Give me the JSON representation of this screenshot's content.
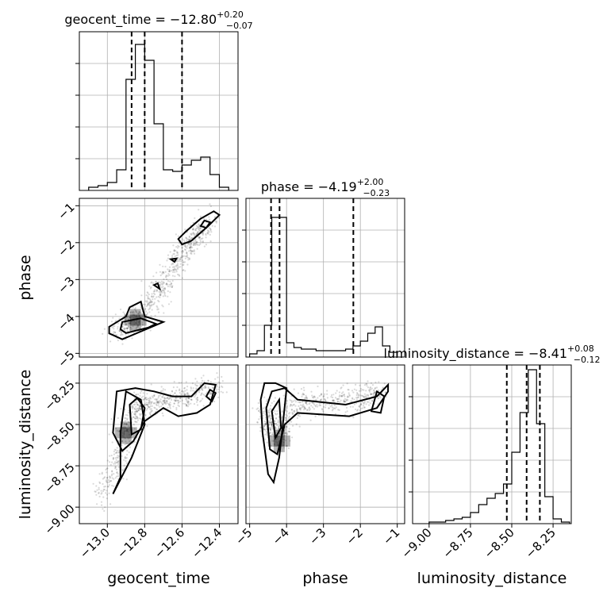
{
  "chart_data": {
    "type": "corner",
    "parameters": [
      "geocent_time",
      "phase",
      "luminosity_distance"
    ],
    "grid": true,
    "axes": {
      "geocent_time": {
        "label": "geocent_time",
        "range": [
          -13.15,
          -12.3
        ],
        "ticks": [
          -13.0,
          -12.8,
          -12.6,
          -12.4
        ],
        "tick_labels": [
          "−13.0",
          "−12.8",
          "−12.6",
          "−12.4"
        ]
      },
      "phase": {
        "label": "phase",
        "range": [
          -5.1,
          -0.8
        ],
        "ticks": [
          -5,
          -4,
          -3,
          -2,
          -1
        ],
        "tick_labels": [
          "−5",
          "−4",
          "−3",
          "−2",
          "−1"
        ]
      },
      "luminosity_distance": {
        "label": "luminosity_distance",
        "range": [
          -9.1,
          -8.14
        ],
        "ticks": [
          -9.0,
          -8.75,
          -8.5,
          -8.25
        ],
        "tick_labels": [
          "−9.00",
          "−8.75",
          "−8.50",
          "−8.25"
        ]
      }
    },
    "marginals": [
      {
        "parameter": "geocent_time",
        "title_prefix": "geocent_time = −12.80",
        "title_plus": "+0.20",
        "title_minus": "−0.07",
        "median": -12.8,
        "quantiles": [
          -12.87,
          -12.8,
          -12.6
        ],
        "bins": [
          -13.1,
          -13.05,
          -13.0,
          -12.95,
          -12.9,
          -12.85,
          -12.8,
          -12.75,
          -12.7,
          -12.65,
          -12.6,
          -12.55,
          -12.5,
          -12.45,
          -12.4
        ],
        "counts": [
          0.02,
          0.03,
          0.05,
          0.13,
          0.7,
          0.92,
          0.82,
          0.42,
          0.13,
          0.12,
          0.16,
          0.19,
          0.21,
          0.1,
          0.02
        ]
      },
      {
        "parameter": "phase",
        "title_prefix": "phase = −4.19",
        "title_plus": "+2.00",
        "title_minus": "−0.23",
        "median": -4.19,
        "quantiles": [
          -4.42,
          -4.19,
          -2.19
        ],
        "bins": [
          -5.0,
          -4.8,
          -4.6,
          -4.4,
          -4.2,
          -4.0,
          -3.8,
          -3.6,
          -3.4,
          -3.2,
          -3.0,
          -2.8,
          -2.6,
          -2.4,
          -2.2,
          -2.0,
          -1.8,
          -1.6,
          -1.4,
          -1.2
        ],
        "counts": [
          0.02,
          0.04,
          0.2,
          0.88,
          0.88,
          0.09,
          0.06,
          0.05,
          0.05,
          0.04,
          0.04,
          0.04,
          0.04,
          0.05,
          0.07,
          0.1,
          0.15,
          0.19,
          0.07,
          0.03
        ]
      },
      {
        "parameter": "luminosity_distance",
        "title_prefix": "luminosity_distance = −8.41",
        "title_plus": "+0.08",
        "title_minus": "−0.12",
        "median": -8.41,
        "quantiles": [
          -8.53,
          -8.41,
          -8.33
        ],
        "bins": [
          -9.0,
          -8.95,
          -8.9,
          -8.85,
          -8.8,
          -8.75,
          -8.7,
          -8.65,
          -8.6,
          -8.55,
          -8.5,
          -8.45,
          -8.4,
          -8.35,
          -8.3,
          -8.25,
          -8.2
        ],
        "counts": [
          0.01,
          0.01,
          0.02,
          0.03,
          0.04,
          0.07,
          0.12,
          0.16,
          0.19,
          0.25,
          0.45,
          0.7,
          0.97,
          0.63,
          0.17,
          0.03,
          0.01
        ]
      }
    ],
    "joint_2d": [
      {
        "x": "geocent_time",
        "y": "phase",
        "description_points": [
          [
            -12.95,
            -4.4
          ],
          [
            -12.9,
            -4.25
          ],
          [
            -12.85,
            -4.1
          ],
          [
            -12.8,
            -3.9
          ],
          [
            -12.75,
            -3.5
          ],
          [
            -12.7,
            -3.1
          ],
          [
            -12.65,
            -2.7
          ],
          [
            -12.6,
            -2.3
          ],
          [
            -12.55,
            -2.0
          ],
          [
            -12.5,
            -1.7
          ],
          [
            -12.45,
            -1.4
          ]
        ],
        "contours": [
          [
            [
              -12.93,
              -4.35
            ],
            [
              -12.9,
              -4.45
            ],
            [
              -12.78,
              -4.3
            ],
            [
              -12.74,
              -4.2
            ],
            [
              -12.82,
              -4.05
            ],
            [
              -12.92,
              -4.15
            ],
            [
              -12.93,
              -4.35
            ]
          ],
          [
            [
              -12.99,
              -4.46
            ],
            [
              -12.92,
              -4.62
            ],
            [
              -12.7,
              -4.15
            ],
            [
              -12.8,
              -4.0
            ],
            [
              -12.82,
              -3.6
            ],
            [
              -12.88,
              -3.75
            ],
            [
              -12.9,
              -4.0
            ],
            [
              -12.99,
              -4.28
            ],
            [
              -12.99,
              -4.46
            ]
          ],
          [
            [
              -12.75,
              -3.15
            ],
            [
              -12.72,
              -3.25
            ],
            [
              -12.73,
              -3.1
            ],
            [
              -12.75,
              -3.15
            ]
          ],
          [
            [
              -12.66,
              -2.45
            ],
            [
              -12.64,
              -2.52
            ],
            [
              -12.63,
              -2.43
            ],
            [
              -12.66,
              -2.45
            ]
          ],
          [
            [
              -12.6,
              -2.05
            ],
            [
              -12.55,
              -1.95
            ],
            [
              -12.46,
              -1.55
            ],
            [
              -12.4,
              -1.25
            ],
            [
              -12.43,
              -1.15
            ],
            [
              -12.5,
              -1.35
            ],
            [
              -12.58,
              -1.7
            ],
            [
              -12.62,
              -1.9
            ],
            [
              -12.6,
              -2.05
            ]
          ],
          [
            [
              -12.5,
              -1.55
            ],
            [
              -12.47,
              -1.6
            ],
            [
              -12.45,
              -1.45
            ],
            [
              -12.48,
              -1.4
            ],
            [
              -12.5,
              -1.55
            ]
          ]
        ]
      },
      {
        "x": "geocent_time",
        "y": "luminosity_distance",
        "description_points": [
          [
            -13.05,
            -8.95
          ],
          [
            -12.95,
            -8.75
          ],
          [
            -12.9,
            -8.55
          ],
          [
            -12.85,
            -8.4
          ],
          [
            -12.8,
            -8.38
          ],
          [
            -12.7,
            -8.35
          ],
          [
            -12.6,
            -8.33
          ],
          [
            -12.5,
            -8.3
          ],
          [
            -12.4,
            -8.27
          ]
        ],
        "contours": [
          [
            [
              -12.88,
              -8.38
            ],
            [
              -12.87,
              -8.56
            ],
            [
              -12.82,
              -8.53
            ],
            [
              -12.8,
              -8.4
            ],
            [
              -12.84,
              -8.34
            ],
            [
              -12.88,
              -8.38
            ]
          ],
          [
            [
              -12.95,
              -8.3
            ],
            [
              -12.97,
              -8.55
            ],
            [
              -12.92,
              -8.66
            ],
            [
              -12.86,
              -8.6
            ],
            [
              -12.8,
              -8.48
            ],
            [
              -12.7,
              -8.4
            ],
            [
              -12.62,
              -8.45
            ],
            [
              -12.52,
              -8.43
            ],
            [
              -12.45,
              -8.38
            ],
            [
              -12.42,
              -8.26
            ],
            [
              -12.48,
              -8.25
            ],
            [
              -12.55,
              -8.33
            ],
            [
              -12.65,
              -8.33
            ],
            [
              -12.75,
              -8.3
            ],
            [
              -12.85,
              -8.28
            ],
            [
              -12.95,
              -8.3
            ]
          ],
          [
            [
              -12.9,
              -8.3
            ],
            [
              -12.93,
              -8.55
            ],
            [
              -12.93,
              -8.82
            ],
            [
              -12.97,
              -8.92
            ],
            [
              -12.87,
              -8.7
            ],
            [
              -12.8,
              -8.5
            ],
            [
              -12.82,
              -8.35
            ],
            [
              -12.9,
              -8.3
            ]
          ],
          [
            [
              -12.47,
              -8.33
            ],
            [
              -12.44,
              -8.36
            ],
            [
              -12.42,
              -8.31
            ],
            [
              -12.45,
              -8.29
            ],
            [
              -12.47,
              -8.33
            ]
          ]
        ]
      },
      {
        "x": "phase",
        "y": "luminosity_distance",
        "description_points": [
          [
            -4.6,
            -8.4
          ],
          [
            -4.4,
            -8.5
          ],
          [
            -4.2,
            -8.6
          ],
          [
            -3.8,
            -8.38
          ],
          [
            -3.0,
            -8.37
          ],
          [
            -2.0,
            -8.35
          ],
          [
            -1.5,
            -8.3
          ]
        ],
        "contours": [
          [
            [
              -4.4,
              -8.42
            ],
            [
              -4.3,
              -8.58
            ],
            [
              -4.15,
              -8.52
            ],
            [
              -4.2,
              -8.35
            ],
            [
              -4.4,
              -8.42
            ]
          ],
          [
            [
              -4.55,
              -8.4
            ],
            [
              -4.45,
              -8.65
            ],
            [
              -4.25,
              -8.68
            ],
            [
              -4.05,
              -8.5
            ],
            [
              -3.7,
              -8.43
            ],
            [
              -2.3,
              -8.45
            ],
            [
              -1.55,
              -8.4
            ],
            [
              -1.25,
              -8.3
            ],
            [
              -1.25,
              -8.26
            ],
            [
              -1.55,
              -8.33
            ],
            [
              -2.4,
              -8.38
            ],
            [
              -3.7,
              -8.35
            ],
            [
              -4.05,
              -8.28
            ],
            [
              -4.4,
              -8.3
            ],
            [
              -4.55,
              -8.4
            ]
          ],
          [
            [
              -4.7,
              -8.35
            ],
            [
              -4.65,
              -8.55
            ],
            [
              -4.5,
              -8.8
            ],
            [
              -4.35,
              -8.85
            ],
            [
              -4.2,
              -8.7
            ],
            [
              -4.1,
              -8.5
            ],
            [
              -4.0,
              -8.28
            ],
            [
              -4.3,
              -8.25
            ],
            [
              -4.6,
              -8.25
            ],
            [
              -4.7,
              -8.35
            ]
          ],
          [
            [
              -1.7,
              -8.42
            ],
            [
              -1.45,
              -8.43
            ],
            [
              -1.35,
              -8.33
            ],
            [
              -1.55,
              -8.3
            ],
            [
              -1.7,
              -8.42
            ]
          ]
        ]
      }
    ]
  }
}
